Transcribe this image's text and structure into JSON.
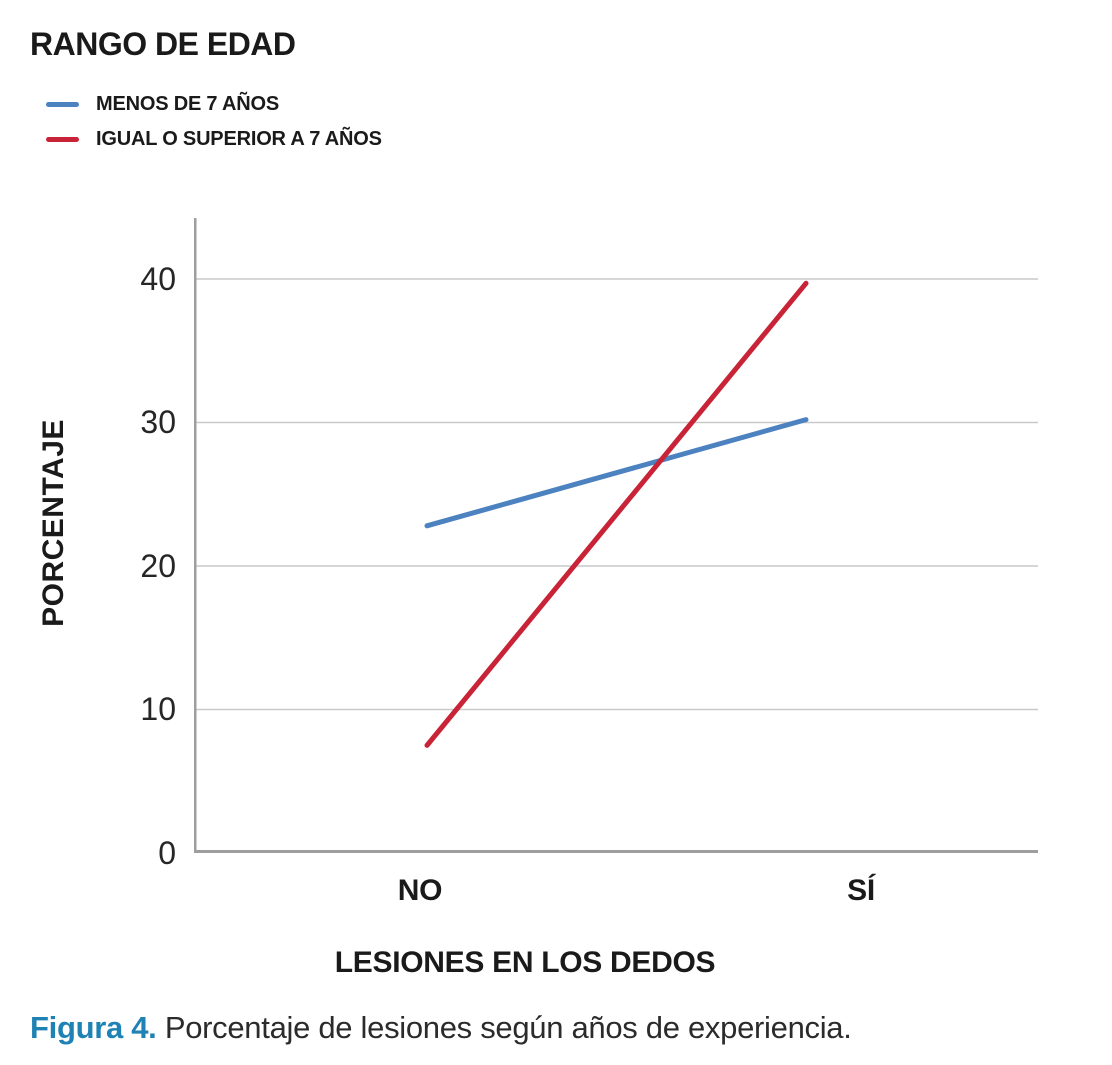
{
  "legend": {
    "title": "RANGO DE EDAD",
    "items": [
      {
        "label": "MENOS DE 7 AÑOS",
        "color": "#4d82c0"
      },
      {
        "label": "IGUAL O SUPERIOR A 7 AÑOS",
        "color": "#c92337"
      }
    ]
  },
  "chart_data": {
    "type": "line",
    "categories": [
      "NO",
      "SÍ"
    ],
    "series": [
      {
        "name": "MENOS DE 7 AÑOS",
        "color": "#4d82c0",
        "values": [
          22.8,
          30.2
        ]
      },
      {
        "name": "IGUAL O SUPERIOR A 7 AÑOS",
        "color": "#c92337",
        "values": [
          7.5,
          39.7
        ]
      }
    ],
    "title": "",
    "xlabel": "LESIONES EN LOS DEDOS",
    "ylabel": "PORCENTAJE",
    "yticks": [
      0,
      10,
      20,
      30,
      40
    ],
    "ylim": [
      0,
      44.25
    ],
    "grid": "horizontal",
    "legend_position": "top-left",
    "grid_color": "#c9c9c9",
    "axis_color": "#9e9e9e"
  },
  "caption": {
    "label": "Figura 4.",
    "text": "Porcentaje de lesiones según años de experiencia.",
    "label_color": "#1f82b4"
  }
}
